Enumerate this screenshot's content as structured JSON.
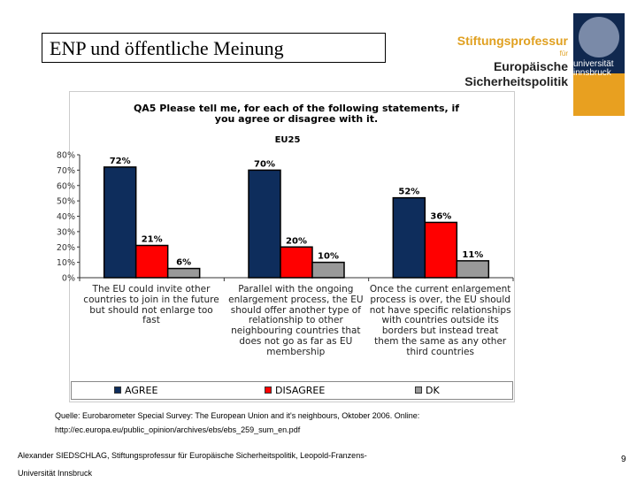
{
  "slide": {
    "title": "ENP und öffentliche Meinung",
    "page_number": "9"
  },
  "logo": {
    "line1": "Stiftungsprofessur",
    "line2": "für",
    "line3": "Europäische",
    "line4": "Sicherheitspolitik",
    "uni1": "universität",
    "uni2": "innsbruck"
  },
  "source": {
    "line1": "Quelle: Eurobarometer Special Survey: The European Union and it's neighbours, Oktober 2006. Online:",
    "line2": "http://ec.europa.eu/public_opinion/archives/ebs/ebs_259_sum_en.pdf"
  },
  "footer": {
    "line1": "Alexander SIEDSCHLAG, Stiftungsprofessur für Europäische Sicherheitspolitik, Leopold-Franzens-",
    "line2": "Universität Innsbruck"
  },
  "chart_data": {
    "type": "bar",
    "title": "QA5 Please tell me, for each of the following statements, if you agree or disagree with it.",
    "subtitle": "EU25",
    "categories": [
      "The EU could invite other countries to join in the future but should not enlarge too fast",
      "Parallel with the ongoing enlargement process, the EU should offer another type of relationship to other neighbouring countries that does not go as far as EU membership",
      "Once the current enlargement process is over, the EU should not have specific relationships with countries outside its borders but instead treat them the same as any other third countries"
    ],
    "series": [
      {
        "name": "AGREE",
        "values": [
          72,
          70,
          52
        ],
        "color": "#0e2d5c"
      },
      {
        "name": "DISAGREE",
        "values": [
          21,
          20,
          36
        ],
        "color": "#ff0000"
      },
      {
        "name": "DK",
        "values": [
          6,
          10,
          11
        ],
        "color": "#999999"
      }
    ],
    "yticks": [
      "0%",
      "10%",
      "20%",
      "30%",
      "40%",
      "50%",
      "60%",
      "70%",
      "80%"
    ],
    "ylim": [
      0,
      80
    ],
    "legend": "bottom",
    "grid": false
  }
}
